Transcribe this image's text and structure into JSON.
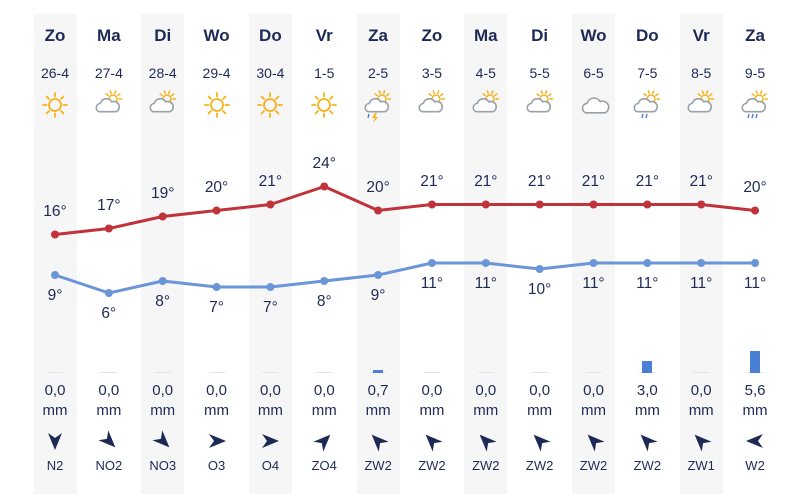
{
  "chart_data": {
    "type": "line",
    "days": [
      "Zo",
      "Ma",
      "Di",
      "Wo",
      "Do",
      "Vr",
      "Za",
      "Zo",
      "Ma",
      "Di",
      "Wo",
      "Do",
      "Vr",
      "Za"
    ],
    "dates": [
      "26-4",
      "27-4",
      "28-4",
      "29-4",
      "30-4",
      "1-5",
      "2-5",
      "3-5",
      "4-5",
      "5-5",
      "6-5",
      "7-5",
      "8-5",
      "9-5"
    ],
    "weather_icons": [
      "sun-icon",
      "cloud-sun-icon",
      "cloud-sun-icon",
      "sun-icon",
      "sun-icon",
      "sun-icon",
      "thunder-icon",
      "cloud-sun-icon",
      "cloud-sun-icon",
      "cloud-sun-icon",
      "cloud-icon",
      "cloud-sun-rain-icon",
      "cloud-sun-icon",
      "rain-cloud-icon"
    ],
    "series": [
      {
        "values": [
          16,
          17,
          19,
          20,
          21,
          24,
          20,
          21,
          21,
          21,
          21,
          21,
          21,
          20
        ],
        "color": "#c0333b"
      },
      {
        "values": [
          9,
          6,
          8,
          7,
          7,
          8,
          9,
          11,
          11,
          10,
          11,
          11,
          11,
          11
        ],
        "color": "#6a95d8"
      }
    ],
    "temp_labels_max": [
      "16°",
      "17°",
      "19°",
      "20°",
      "21°",
      "24°",
      "20°",
      "21°",
      "21°",
      "21°",
      "21°",
      "21°",
      "21°",
      "20°"
    ],
    "temp_labels_min": [
      "9°",
      "6°",
      "8°",
      "7°",
      "7°",
      "8°",
      "9°",
      "11°",
      "11°",
      "10°",
      "11°",
      "11°",
      "11°",
      "11°"
    ],
    "precipitation": [
      0.0,
      0.0,
      0.0,
      0.0,
      0.0,
      0.0,
      0.7,
      0.0,
      0.0,
      0.0,
      0.0,
      3.0,
      0.0,
      5.6
    ],
    "precip_labels": [
      "0,0",
      "0,0",
      "0,0",
      "0,0",
      "0,0",
      "0,0",
      "0,7",
      "0,0",
      "0,0",
      "0,0",
      "0,0",
      "3,0",
      "0,0",
      "5,6"
    ],
    "precip_unit": "mm",
    "wind": [
      "N2",
      "NO2",
      "NO3",
      "O3",
      "O4",
      "ZO4",
      "ZW2",
      "ZW2",
      "ZW2",
      "ZW2",
      "ZW2",
      "ZW2",
      "ZW1",
      "W2"
    ],
    "wind_rotation_deg": [
      0,
      -45,
      -45,
      -90,
      -90,
      -135,
      135,
      135,
      135,
      135,
      135,
      135,
      135,
      90
    ],
    "colors": {
      "text": "#1e2a55",
      "max_line": "#c0333b",
      "min_line": "#6a95d8",
      "bar": "#4a7fd6",
      "sun": "#f5b21a",
      "cloud": "#9aa0a8",
      "bolt": "#f5b21a",
      "rain": "#4a7fd6"
    }
  }
}
